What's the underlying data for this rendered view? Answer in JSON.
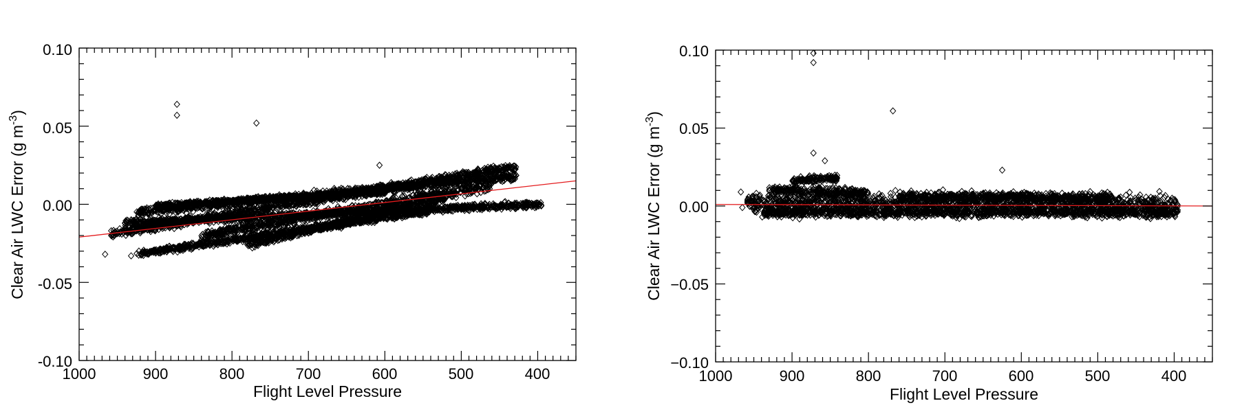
{
  "chart_data": [
    {
      "type": "scatter",
      "title": "",
      "xlabel": "Flight Level Pressure",
      "ylabel_main": "Clear Air LWC Error (g m",
      "ylabel_sup": "-3",
      "ylabel_close": ")",
      "xlim": [
        1000,
        350
      ],
      "ylim": [
        -0.1,
        0.1
      ],
      "x_ticks": [
        1000,
        900,
        800,
        700,
        600,
        500,
        400
      ],
      "x_tick_labels": [
        "1000",
        "900",
        "800",
        "700",
        "600",
        "500",
        "400"
      ],
      "y_ticks": [
        -0.1,
        -0.05,
        0.0,
        0.05,
        0.1
      ],
      "y_tick_labels": [
        "-0.10",
        "-0.05",
        "0.00",
        "0.05",
        "0.10"
      ],
      "grid": false,
      "marker": "open-diamond",
      "fit_line": {
        "color": "#e31a1c",
        "points": [
          [
            1000,
            -0.021
          ],
          [
            350,
            0.015
          ]
        ]
      },
      "outliers": [
        [
          872,
          0.064
        ],
        [
          872,
          0.057
        ],
        [
          768,
          0.052
        ],
        [
          607,
          0.025
        ],
        [
          932,
          -0.033
        ],
        [
          966,
          -0.032
        ]
      ],
      "bands": [
        {
          "p_start": 958,
          "p_end": 428,
          "y_start": -0.019,
          "y_end": 0.024,
          "width": 0.005
        },
        {
          "p_start": 925,
          "p_end": 428,
          "y_start": -0.005,
          "y_end": 0.018,
          "width": 0.005
        },
        {
          "p_start": 940,
          "p_end": 395,
          "y_start": -0.012,
          "y_end": 0.0,
          "width": 0.004
        },
        {
          "p_start": 925,
          "p_end": 540,
          "y_start": -0.032,
          "y_end": -0.004,
          "width": 0.004
        },
        {
          "p_start": 840,
          "p_end": 460,
          "y_start": -0.02,
          "y_end": 0.012,
          "width": 0.006
        },
        {
          "p_start": 900,
          "p_end": 600,
          "y_start": -0.001,
          "y_end": 0.008,
          "width": 0.003
        },
        {
          "p_start": 780,
          "p_end": 520,
          "y_start": -0.026,
          "y_end": 0.004,
          "width": 0.004
        }
      ]
    },
    {
      "type": "scatter",
      "title": "",
      "xlabel": "Flight Level Pressure",
      "ylabel_main": "Clear Air LWC Error (g m",
      "ylabel_sup": "-3",
      "ylabel_close": ")",
      "xlim": [
        1000,
        350
      ],
      "ylim": [
        -0.1,
        0.1
      ],
      "x_ticks": [
        1000,
        900,
        800,
        700,
        600,
        500,
        400
      ],
      "x_tick_labels": [
        "1000",
        "900",
        "800",
        "700",
        "600",
        "500",
        "400"
      ],
      "y_ticks": [
        -0.1,
        -0.05,
        0.0,
        0.05,
        0.1
      ],
      "y_tick_labels": [
        "−0.10",
        "−0.05",
        "0.00",
        "0.05",
        "0.10"
      ],
      "grid": false,
      "marker": "open-diamond",
      "fit_line": {
        "color": "#e31a1c",
        "points": [
          [
            1000,
            0.001
          ],
          [
            350,
            0.0
          ]
        ]
      },
      "outliers": [
        [
          872,
          0.098
        ],
        [
          872,
          0.092
        ],
        [
          768,
          0.061
        ],
        [
          872,
          0.034
        ],
        [
          857,
          0.029
        ],
        [
          625,
          0.023
        ],
        [
          965,
          -0.001
        ],
        [
          967,
          0.009
        ]
      ],
      "bands": [
        {
          "p_start": 960,
          "p_end": 395,
          "y_start": 0.002,
          "y_end": 0.001,
          "width": 0.012
        },
        {
          "p_start": 940,
          "p_end": 395,
          "y_start": -0.004,
          "y_end": -0.004,
          "width": 0.006
        },
        {
          "p_start": 930,
          "p_end": 800,
          "y_start": 0.01,
          "y_end": 0.008,
          "width": 0.006
        },
        {
          "p_start": 900,
          "p_end": 840,
          "y_start": 0.016,
          "y_end": 0.018,
          "width": 0.004
        },
        {
          "p_start": 760,
          "p_end": 480,
          "y_start": 0.006,
          "y_end": 0.005,
          "width": 0.006
        }
      ]
    }
  ]
}
